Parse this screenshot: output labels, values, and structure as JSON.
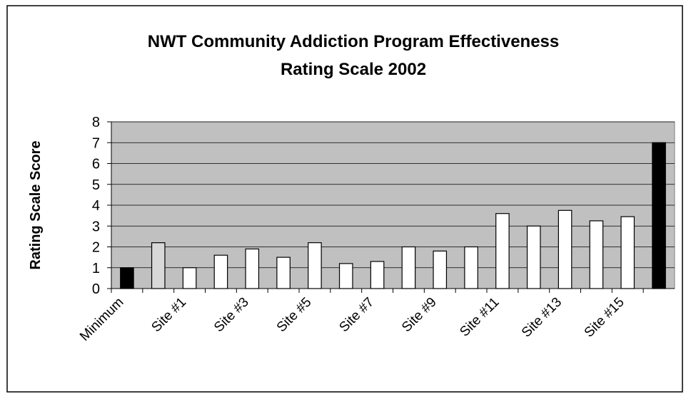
{
  "chart_data": {
    "type": "bar",
    "title": [
      "NWT Community Addiction Program Effectiveness",
      "Rating Scale 2002"
    ],
    "y_label": "Rating Scale Score",
    "categories": [
      "Minimum",
      null,
      "Site #1",
      null,
      "Site #3",
      null,
      "Site #5",
      null,
      "Site #7",
      null,
      "Site #9",
      null,
      "Site #11",
      null,
      "Site #13",
      null,
      "Site #15",
      null
    ],
    "values": [
      1,
      2.2,
      1,
      1.6,
      1.9,
      1.5,
      2.2,
      1.2,
      1.3,
      2,
      1.8,
      2,
      3.6,
      3,
      3.75,
      3.25,
      3.45,
      7
    ],
    "colors": [
      "#000000",
      "#d8d8d8",
      "#ffffff",
      "#ffffff",
      "#ffffff",
      "#ffffff",
      "#ffffff",
      "#ffffff",
      "#ffffff",
      "#ffffff",
      "#ffffff",
      "#ffffff",
      "#ffffff",
      "#ffffff",
      "#ffffff",
      "#ffffff",
      "#ffffff",
      "#000000"
    ],
    "plot_background": "#c0c0c0",
    "ylim": [
      0,
      8
    ],
    "yticks": [
      0,
      1,
      2,
      3,
      4,
      5,
      6,
      7,
      8
    ],
    "grid": true
  }
}
